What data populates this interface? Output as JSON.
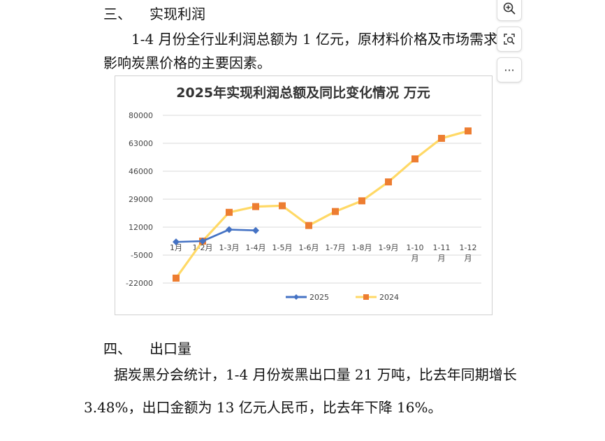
{
  "section3": {
    "number": "三、",
    "title": "实现利润",
    "para_line1": "1-4 月份全行业利润总额为 1 亿元，原材料价格及市场需求",
    "para_line2": "影响炭黑价格的主要因素。"
  },
  "section4": {
    "number": "四、",
    "title": "出口量",
    "para_line1": "据炭黑分会统计，1-4 月份炭黑出口量 21 万吨，比去年同期增长",
    "para_line2": "3.48%，出口金额为 13 亿元人民币，比去年下降 16%。"
  },
  "toolbar": {
    "zoom_icon": "zoom-in-icon",
    "scan_icon": "image-search-icon",
    "more_label": "···"
  },
  "chart_data": {
    "type": "line",
    "title": "2025年实现利润总额及同比变化情况  万元",
    "categories": [
      "1月",
      "1-2月",
      "1-3月",
      "1-4月",
      "1-5月",
      "1-6月",
      "1-7月",
      "1-8月",
      "1-9月",
      "1-10月",
      "1-11月",
      "1-12月"
    ],
    "ylim": [
      -22000,
      80000
    ],
    "yticks": [
      "80000",
      "63000",
      "46000",
      "29000",
      "12000",
      "-5000",
      "-22000"
    ],
    "grid": true,
    "legend_position": "bottom",
    "series": [
      {
        "name": "2025",
        "color": "#4472C4",
        "marker": "diamond",
        "values": [
          3000,
          3500,
          10500,
          10000,
          null,
          null,
          null,
          null,
          null,
          null,
          null,
          null
        ]
      },
      {
        "name": "2024",
        "color": "#FFD966",
        "marker_color": "#ED7D31",
        "marker": "square",
        "values": [
          -19000,
          3500,
          21000,
          24500,
          25000,
          13000,
          21500,
          28000,
          39500,
          53500,
          66000,
          70500
        ]
      }
    ]
  }
}
